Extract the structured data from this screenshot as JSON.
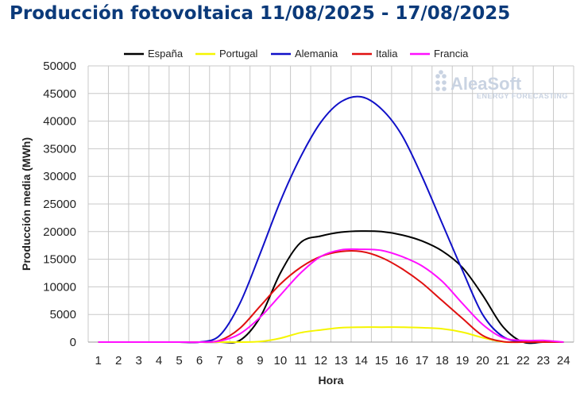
{
  "chart_data": {
    "type": "line",
    "title": "Producción fotovoltaica 11/08/2025 - 17/08/2025",
    "xlabel": "Hora",
    "ylabel": "Producción media (MWh)",
    "ylim": [
      0,
      50000
    ],
    "yticks": [
      "0",
      "5000",
      "10000",
      "15000",
      "20000",
      "25000",
      "30000",
      "35000",
      "40000",
      "45000",
      "50000"
    ],
    "xticks": [
      "1",
      "2",
      "3",
      "4",
      "5",
      "6",
      "7",
      "8",
      "9",
      "10",
      "11",
      "12",
      "13",
      "14",
      "15",
      "16",
      "17",
      "18",
      "19",
      "20",
      "21",
      "22",
      "23",
      "24"
    ],
    "x": [
      1,
      2,
      3,
      4,
      5,
      6,
      7,
      8,
      9,
      10,
      11,
      12,
      13,
      14,
      15,
      16,
      17,
      18,
      19,
      20,
      21,
      22,
      23,
      24
    ],
    "grid": true,
    "legend_position": "top",
    "series": [
      {
        "name": "España",
        "color": "#000000",
        "values": [
          0,
          0,
          0,
          0,
          0,
          0,
          0,
          300,
          4500,
          12500,
          18000,
          19200,
          19900,
          20100,
          20000,
          19400,
          18300,
          16500,
          13500,
          8500,
          2800,
          0,
          0,
          0
        ]
      },
      {
        "name": "Portugal",
        "color": "#f5f500",
        "values": [
          0,
          0,
          0,
          0,
          0,
          0,
          0,
          0,
          100,
          700,
          1700,
          2200,
          2600,
          2700,
          2700,
          2700,
          2600,
          2400,
          1800,
          800,
          50,
          0,
          0,
          0
        ]
      },
      {
        "name": "Alemania",
        "color": "#1010c8",
        "values": [
          0,
          0,
          0,
          0,
          0,
          0,
          1200,
          7000,
          16000,
          25500,
          33500,
          39800,
          43500,
          44400,
          42200,
          37500,
          30000,
          21500,
          13000,
          5000,
          1000,
          50,
          0,
          0
        ]
      },
      {
        "name": "Italia",
        "color": "#e01010",
        "values": [
          0,
          0,
          0,
          0,
          0,
          0,
          300,
          2500,
          6500,
          10500,
          13500,
          15500,
          16400,
          16400,
          15300,
          13300,
          10700,
          7500,
          4300,
          1200,
          100,
          0,
          0,
          0
        ]
      },
      {
        "name": "Francia",
        "color": "#ff10ff",
        "values": [
          0,
          0,
          0,
          0,
          0,
          0,
          200,
          1500,
          4500,
          8500,
          12500,
          15500,
          16700,
          16800,
          16600,
          15500,
          13800,
          11000,
          7000,
          3200,
          800,
          300,
          300,
          0
        ]
      }
    ]
  },
  "watermark": {
    "brand": "AleaSoft",
    "tagline": "ENERGY FORECASTING"
  }
}
